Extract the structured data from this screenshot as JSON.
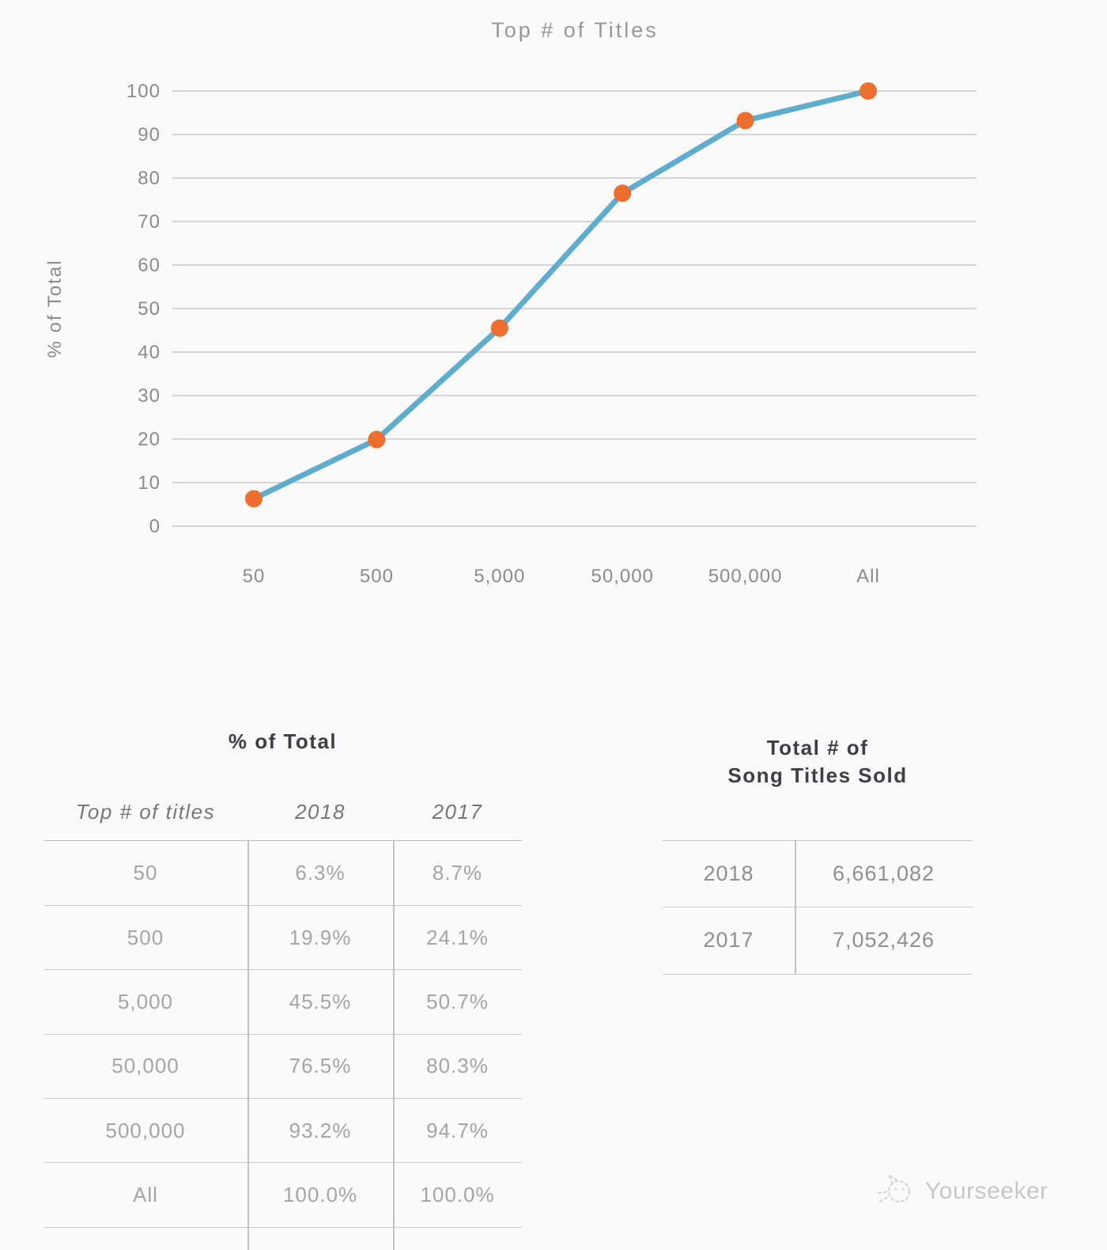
{
  "chart_data": {
    "type": "line",
    "title": "Top # of Titles",
    "xlabel": "",
    "ylabel": "% of Total",
    "categories": [
      "50",
      "500",
      "5,000",
      "50,000",
      "500,000",
      "All"
    ],
    "series": [
      {
        "name": "2018",
        "values": [
          6.3,
          19.9,
          45.5,
          76.5,
          93.2,
          100.0
        ]
      }
    ],
    "ylim": [
      0,
      100
    ],
    "ytick_step": 10,
    "grid": true,
    "legend": "none",
    "line_color": "#5fadce",
    "marker_color": "#ed6e2d"
  },
  "percent_table": {
    "title": "% of Total",
    "columns": [
      "Top # of titles",
      "2018",
      "2017"
    ],
    "rows": [
      [
        "50",
        "6.3%",
        "8.7%"
      ],
      [
        "500",
        "19.9%",
        "24.1%"
      ],
      [
        "5,000",
        "45.5%",
        "50.7%"
      ],
      [
        "50,000",
        "76.5%",
        "80.3%"
      ],
      [
        "500,000",
        "93.2%",
        "94.7%"
      ],
      [
        "All",
        "100.0%",
        "100.0%"
      ]
    ]
  },
  "totals_table": {
    "title": "Total # of Song Titles Sold",
    "title_lines": [
      "Total # of",
      "Song Titles Sold"
    ],
    "rows": [
      [
        "2018",
        "6,661,082"
      ],
      [
        "2017",
        "7,052,426"
      ]
    ]
  },
  "watermark": {
    "label": "Yourseeker",
    "icon": "doodle-cat-icon"
  },
  "colors": {
    "background": "#fafafa",
    "gridline": "#c9c9c9",
    "tick_text": "#8b8b8e",
    "chart_title_text": "#97979a",
    "table_title_text": "#3e3e46",
    "table_cell_text": "#a5a5a8"
  }
}
